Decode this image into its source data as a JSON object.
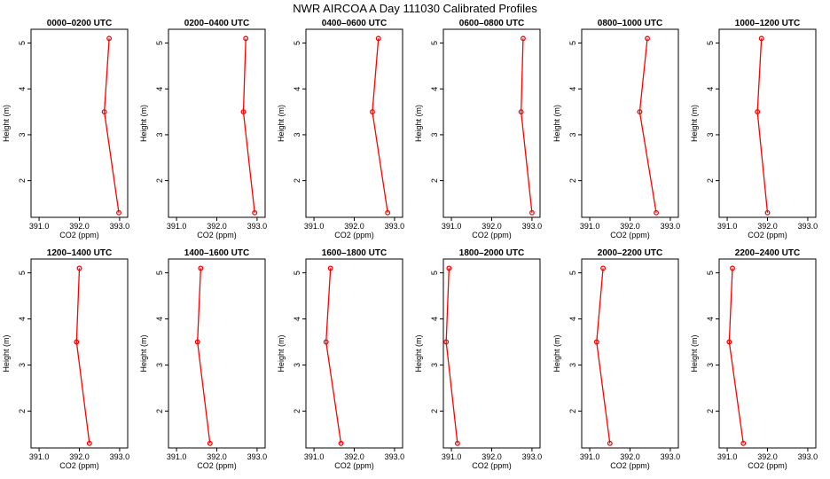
{
  "title": "NWR AIRCOA A  Day 111030  Calibrated Profiles",
  "chart_data": {
    "type": "line",
    "series_color": "#ff0000",
    "xlabel": "CO2 (ppm)",
    "ylabel": "Height (m)",
    "xlim": [
      390.8,
      393.2
    ],
    "ylim": [
      1.2,
      5.3
    ],
    "xticks": [
      391.0,
      392.0,
      393.0
    ],
    "xtick_labels": [
      "391.0",
      "392.0",
      "393.0"
    ],
    "yticks": [
      2,
      3,
      4,
      5
    ],
    "ytick_labels": [
      "2",
      "3",
      "4",
      "5"
    ],
    "heights": [
      5.1,
      3.5,
      1.3
    ],
    "panels": [
      {
        "title": "0000–0200 UTC",
        "co2": [
          392.74,
          392.62,
          392.98
        ]
      },
      {
        "title": "0200–0400 UTC",
        "co2": [
          392.72,
          392.66,
          392.94
        ]
      },
      {
        "title": "0400–0600 UTC",
        "co2": [
          392.6,
          392.45,
          392.83
        ]
      },
      {
        "title": "0600–0800 UTC",
        "co2": [
          392.78,
          392.73,
          393.0
        ]
      },
      {
        "title": "0800–1000 UTC",
        "co2": [
          392.43,
          392.24,
          392.65
        ]
      },
      {
        "title": "1000–1200 UTC",
        "co2": [
          391.85,
          391.75,
          392.0
        ]
      },
      {
        "title": "1200–1400 UTC",
        "co2": [
          392.0,
          391.93,
          392.25
        ]
      },
      {
        "title": "1400–1600 UTC",
        "co2": [
          391.6,
          391.52,
          391.83
        ]
      },
      {
        "title": "1600–1800 UTC",
        "co2": [
          391.41,
          391.3,
          391.67
        ]
      },
      {
        "title": "1800–2000 UTC",
        "co2": [
          390.94,
          390.87,
          391.15
        ]
      },
      {
        "title": "2000–2200 UTC",
        "co2": [
          391.33,
          391.17,
          391.5
        ]
      },
      {
        "title": "2200–2400 UTC",
        "co2": [
          391.13,
          391.05,
          391.4
        ]
      }
    ]
  }
}
